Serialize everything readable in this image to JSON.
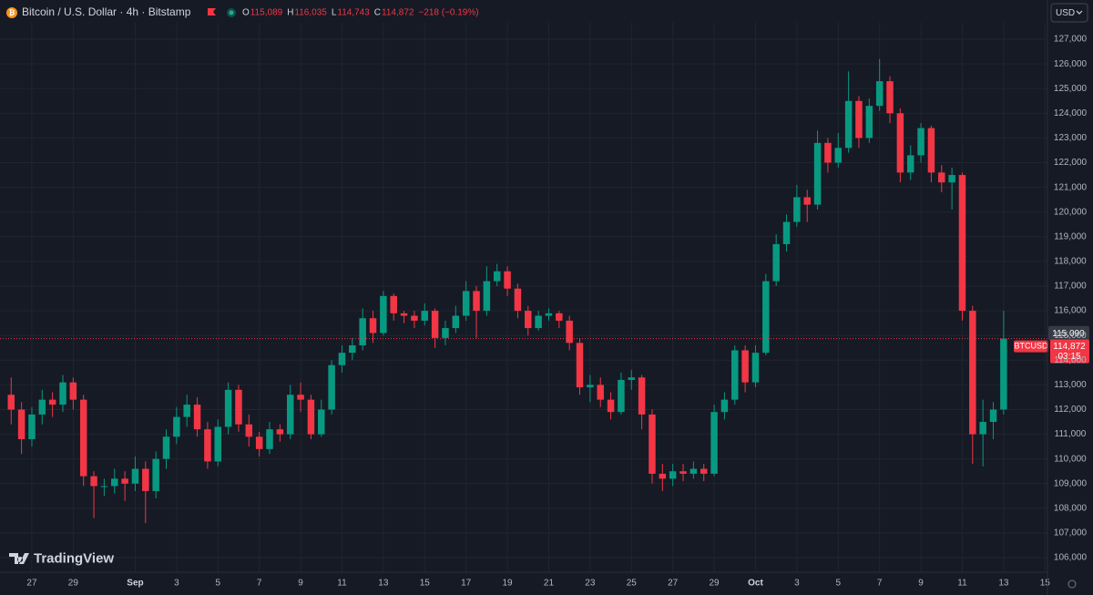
{
  "chart_data": {
    "type": "candlestick",
    "title": "Bitcoin / U.S. Dollar · 4h · Bitstamp",
    "legend": [
      {
        "key": "O",
        "value": "115,089"
      },
      {
        "key": "H",
        "value": "116,035"
      },
      {
        "key": "L",
        "value": "114,743"
      },
      {
        "key": "C",
        "value": "114,872"
      }
    ],
    "change": "−218 (−0.19%)",
    "currency": "USD",
    "watermark": "TradingView",
    "up_color": "#089981",
    "down_color": "#f23645",
    "grid": true,
    "x": [
      -1,
      -0.5,
      0,
      0.5,
      1,
      1.5,
      2,
      2.5,
      3,
      3.5,
      4,
      4.5,
      5,
      5.5,
      6,
      6.5,
      7,
      7.5,
      8,
      8.5,
      9,
      9.5,
      10,
      10.5,
      11,
      11.5,
      12,
      12.5,
      13,
      13.5,
      14,
      14.5,
      15,
      15.5,
      16,
      16.5,
      17,
      17.5,
      18,
      18.5,
      19,
      19.5,
      20,
      20.5,
      21,
      21.5,
      22,
      22.5,
      23,
      23.5,
      24,
      24.5,
      25,
      25.5,
      26,
      26.5,
      27,
      27.5,
      28,
      28.5,
      29,
      29.5,
      30,
      30.5,
      31,
      31.5,
      32,
      32.5,
      33,
      33.5,
      34,
      34.5,
      35,
      35.5,
      36,
      36.5,
      37,
      37.5,
      38,
      38.5,
      39,
      39.5,
      40,
      40.5,
      41,
      41.5,
      42,
      42.5,
      43,
      43.5,
      44,
      44.5,
      45,
      45.5,
      46,
      46.5,
      47
    ],
    "open": [
      112600,
      112000,
      110800,
      111800,
      112400,
      112200,
      113100,
      112400,
      109300,
      108900,
      108900,
      109200,
      109000,
      109600,
      108700,
      110000,
      110900,
      111700,
      112200,
      111200,
      109900,
      111300,
      112800,
      111400,
      110900,
      110400,
      111200,
      111000,
      112600,
      112400,
      111000,
      112000,
      113800,
      114300,
      114600,
      115700,
      115100,
      116600,
      115900,
      115800,
      115600,
      116000,
      114900,
      115300,
      115800,
      116800,
      116000,
      117200,
      117600,
      116900,
      116000,
      115300,
      115800,
      115900,
      115600,
      114700,
      112900,
      113000,
      112400,
      111900,
      113200,
      113300,
      111800,
      109400,
      109200,
      109500,
      109400,
      109600,
      109400,
      111900,
      112400,
      114400,
      113100,
      114300,
      117200,
      118700,
      119600,
      120600,
      120300,
      122800,
      122000,
      122600,
      124500,
      123000,
      124300,
      125300,
      124000,
      121600,
      122300,
      123400,
      121600,
      121200,
      121500,
      116000,
      111000,
      111500,
      112000
    ],
    "high": [
      113300,
      112300,
      112100,
      112800,
      112700,
      113400,
      113300,
      112600,
      109500,
      109200,
      109600,
      109500,
      110100,
      109900,
      110300,
      111200,
      112100,
      112600,
      112500,
      111500,
      111600,
      113100,
      113000,
      111800,
      111100,
      111500,
      111400,
      113000,
      113100,
      112600,
      112400,
      114000,
      114600,
      114900,
      116100,
      116000,
      116800,
      116700,
      116000,
      116000,
      116300,
      116100,
      115600,
      116200,
      117200,
      117000,
      117800,
      117900,
      117800,
      117100,
      116200,
      116000,
      116100,
      116000,
      115800,
      114900,
      113400,
      113300,
      112700,
      113500,
      113600,
      113400,
      112000,
      109800,
      109800,
      109800,
      109900,
      109800,
      112200,
      112700,
      114600,
      114600,
      114600,
      117500,
      119100,
      119900,
      121100,
      120900,
      123300,
      123000,
      123200,
      125700,
      124700,
      124600,
      126200,
      125500,
      124200,
      122700,
      123600,
      123500,
      121900,
      121800,
      121600,
      116200,
      112400,
      112300,
      116000
    ],
    "low": [
      111400,
      110200,
      110500,
      111400,
      111700,
      111900,
      112000,
      108900,
      107600,
      108500,
      108600,
      108300,
      108700,
      107400,
      108400,
      109600,
      110600,
      111300,
      110900,
      109600,
      109700,
      111000,
      111100,
      110500,
      110100,
      110200,
      110700,
      110800,
      111900,
      110800,
      110900,
      111800,
      113500,
      114000,
      114400,
      114700,
      115000,
      115600,
      115500,
      115300,
      115400,
      114500,
      114600,
      115100,
      115600,
      114900,
      115800,
      117000,
      116600,
      115700,
      115000,
      115200,
      115600,
      115300,
      114400,
      112600,
      112300,
      112100,
      111600,
      111800,
      112800,
      111200,
      109000,
      108700,
      108900,
      109100,
      109200,
      109100,
      109300,
      111600,
      112200,
      112700,
      112900,
      114200,
      117000,
      118400,
      119400,
      119600,
      120100,
      121600,
      121800,
      122400,
      122600,
      122800,
      124100,
      123600,
      121200,
      121300,
      122000,
      121200,
      120800,
      120100,
      115600,
      109800,
      109700,
      110800,
      111800
    ],
    "close": [
      112000,
      110800,
      111800,
      112400,
      112200,
      113100,
      112400,
      109300,
      108900,
      108900,
      109200,
      109000,
      109600,
      108700,
      110000,
      110900,
      111700,
      112200,
      111200,
      109900,
      111300,
      112800,
      111400,
      110900,
      110400,
      111200,
      111000,
      112600,
      112400,
      111000,
      112000,
      113800,
      114300,
      114600,
      115700,
      115100,
      116600,
      115900,
      115800,
      115600,
      116000,
      114900,
      115300,
      115800,
      116800,
      116000,
      117200,
      117600,
      116900,
      116000,
      115300,
      115800,
      115900,
      115600,
      114700,
      112900,
      113000,
      112400,
      111900,
      113200,
      113300,
      111800,
      109400,
      109200,
      109500,
      109400,
      109600,
      109400,
      111900,
      112400,
      114400,
      113100,
      114300,
      117200,
      118700,
      119600,
      120600,
      120300,
      122800,
      122000,
      122600,
      124500,
      123000,
      124300,
      125300,
      124000,
      121600,
      122300,
      123400,
      121600,
      121200,
      121500,
      116000,
      111000,
      111500,
      112000,
      114872
    ],
    "xlim": [
      -1.54,
      49.12
    ],
    "xticks": [
      {
        "value": 0,
        "label": "27"
      },
      {
        "value": 2,
        "label": "29"
      },
      {
        "value": 5,
        "label": "Sep"
      },
      {
        "value": 7,
        "label": "3"
      },
      {
        "value": 9,
        "label": "5"
      },
      {
        "value": 11,
        "label": "7"
      },
      {
        "value": 13,
        "label": "9"
      },
      {
        "value": 15,
        "label": "11"
      },
      {
        "value": 17,
        "label": "13"
      },
      {
        "value": 19,
        "label": "15"
      },
      {
        "value": 21,
        "label": "17"
      },
      {
        "value": 23,
        "label": "19"
      },
      {
        "value": 25,
        "label": "21"
      },
      {
        "value": 27,
        "label": "23"
      },
      {
        "value": 29,
        "label": "25"
      },
      {
        "value": 31,
        "label": "27"
      },
      {
        "value": 33,
        "label": "29"
      },
      {
        "value": 35,
        "label": "Oct"
      },
      {
        "value": 37,
        "label": "3"
      },
      {
        "value": 39,
        "label": "5"
      },
      {
        "value": 41,
        "label": "7"
      },
      {
        "value": 43,
        "label": "9"
      },
      {
        "value": 45,
        "label": "11"
      },
      {
        "value": 47,
        "label": "13"
      },
      {
        "value": 49,
        "label": "15"
      }
    ],
    "ylim": [
      105500,
      127500
    ],
    "yticks": [
      {
        "value": 106000,
        "label": "106,000"
      },
      {
        "value": 107000,
        "label": "107,000"
      },
      {
        "value": 108000,
        "label": "108,000"
      },
      {
        "value": 109000,
        "label": "109,000"
      },
      {
        "value": 110000,
        "label": "110,000"
      },
      {
        "value": 111000,
        "label": "111,000"
      },
      {
        "value": 112000,
        "label": "112,000"
      },
      {
        "value": 113000,
        "label": "113,000"
      },
      {
        "value": 114000,
        "label": "114,000"
      },
      {
        "value": 115000,
        "label": "115,000"
      },
      {
        "value": 116000,
        "label": "116,000"
      },
      {
        "value": 117000,
        "label": "117,000"
      },
      {
        "value": 118000,
        "label": "118,000"
      },
      {
        "value": 119000,
        "label": "119,000"
      },
      {
        "value": 120000,
        "label": "120,000"
      },
      {
        "value": 121000,
        "label": "121,000"
      },
      {
        "value": 122000,
        "label": "122,000"
      },
      {
        "value": 123000,
        "label": "123,000"
      },
      {
        "value": 124000,
        "label": "124,000"
      },
      {
        "value": 125000,
        "label": "125,000"
      },
      {
        "value": 126000,
        "label": "126,000"
      },
      {
        "value": 127000,
        "label": "127,000"
      }
    ],
    "crosshair_price": {
      "value": 115090,
      "label": "115,090"
    },
    "last_price": {
      "value": 114872,
      "label": "114,872",
      "symbol": "BTCUSD",
      "countdown": "03:15"
    }
  }
}
